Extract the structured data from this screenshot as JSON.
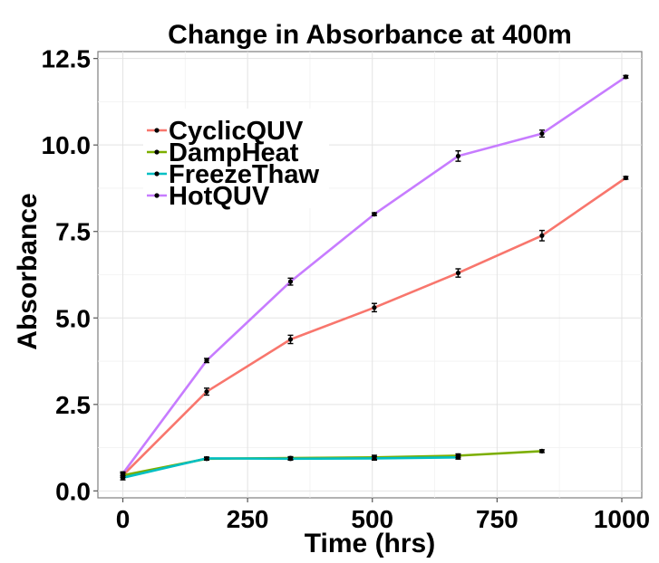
{
  "chart_data": {
    "type": "line",
    "title": "Change in Absorbance at 400m",
    "xlabel": "Time (hrs)",
    "ylabel": "Absorbance",
    "xlim": [
      -50,
      1040
    ],
    "ylim": [
      -0.2,
      12.7
    ],
    "xticks": [
      0,
      250,
      500,
      750,
      1000
    ],
    "xtick_labels": [
      "0",
      "250",
      "500",
      "750",
      "1000"
    ],
    "yticks": [
      0,
      2.5,
      5,
      7.5,
      10,
      12.5
    ],
    "ytick_labels": [
      "0.0",
      "2.5",
      "5.0",
      "7.5",
      "10.0",
      "12.5"
    ],
    "grid": true,
    "legend_position": "top-left",
    "series": [
      {
        "name": "CyclicQUV",
        "color": "#F8766D",
        "x": [
          0,
          168,
          336,
          504,
          672,
          840,
          1008
        ],
        "y": [
          0.45,
          2.87,
          4.38,
          5.3,
          6.3,
          7.38,
          9.05
        ],
        "err": [
          0.06,
          0.1,
          0.12,
          0.12,
          0.12,
          0.15,
          0.04
        ]
      },
      {
        "name": "DampHeat",
        "color": "#7CAE00",
        "x": [
          0,
          168,
          336,
          504,
          672,
          840
        ],
        "y": [
          0.45,
          0.93,
          0.95,
          0.97,
          1.02,
          1.15
        ],
        "err": [
          0.06,
          0.04,
          0.04,
          0.06,
          0.05,
          0.04
        ]
      },
      {
        "name": "FreezeThaw",
        "color": "#00BFC4",
        "x": [
          0,
          168,
          336,
          504,
          672
        ],
        "y": [
          0.38,
          0.94,
          0.93,
          0.94,
          0.97
        ],
        "err": [
          0.06,
          0.04,
          0.04,
          0.05,
          0.05
        ]
      },
      {
        "name": "HotQUV",
        "color": "#C77CFF",
        "x": [
          0,
          168,
          336,
          504,
          672,
          840,
          1008
        ],
        "y": [
          0.5,
          3.77,
          6.05,
          8.0,
          9.68,
          10.33,
          11.97
        ],
        "err": [
          0.05,
          0.06,
          0.1,
          0.04,
          0.15,
          0.1,
          0.04
        ]
      }
    ]
  }
}
